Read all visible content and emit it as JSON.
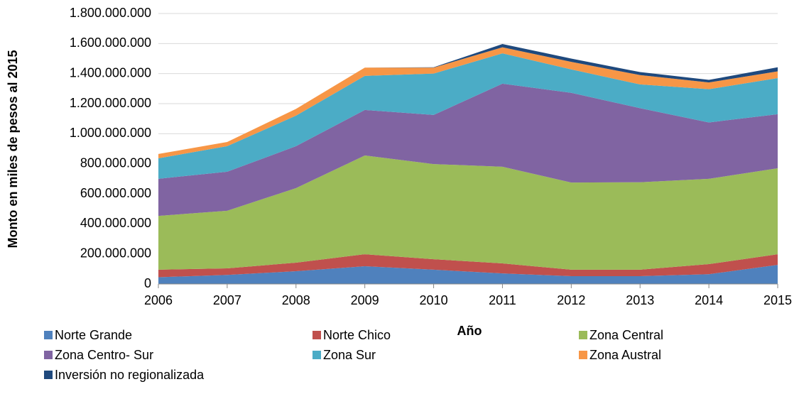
{
  "chart_data": {
    "type": "stacked_area",
    "xlabel": "Año",
    "ylabel": "Monto en miles de pesos al 2015",
    "categories": [
      "2006",
      "2007",
      "2008",
      "2009",
      "2010",
      "2011",
      "2012",
      "2013",
      "2014",
      "2015"
    ],
    "series": [
      {
        "name": "Norte Grande",
        "color": "#4f81bd",
        "values": [
          45000000,
          60000000,
          85000000,
          118000000,
          95000000,
          70000000,
          52000000,
          52000000,
          65000000,
          127000000
        ]
      },
      {
        "name": "Norte Chico",
        "color": "#c0504d",
        "values": [
          50000000,
          44000000,
          57000000,
          80000000,
          70000000,
          67000000,
          43000000,
          43000000,
          67000000,
          71000000
        ]
      },
      {
        "name": "Zona Central",
        "color": "#9bbb59",
        "values": [
          358000000,
          383000000,
          496000000,
          657000000,
          633000000,
          643000000,
          580000000,
          582000000,
          568000000,
          572000000
        ]
      },
      {
        "name": "Zona Centro- Sur",
        "color": "#8064a2",
        "values": [
          247000000,
          260000000,
          279000000,
          303000000,
          327000000,
          553000000,
          597000000,
          493000000,
          375000000,
          360000000
        ]
      },
      {
        "name": "Zona Sur",
        "color": "#4bacc6",
        "values": [
          136000000,
          170000000,
          203000000,
          227000000,
          275000000,
          202000000,
          156000000,
          158000000,
          221000000,
          240000000
        ]
      },
      {
        "name": "Zona Austral",
        "color": "#f79646",
        "values": [
          29000000,
          28000000,
          45000000,
          55000000,
          40000000,
          40000000,
          50000000,
          62000000,
          45000000,
          45000000
        ]
      },
      {
        "name": "Inversión no regionalizada",
        "color": "#1f497d",
        "values": [
          0,
          0,
          0,
          0,
          2000000,
          22000000,
          22000000,
          20000000,
          17000000,
          27000000
        ]
      }
    ],
    "ylim": [
      0,
      1800000000
    ],
    "yticks": [
      0,
      {
        "value": 200000000,
        "label": "200.000.000"
      },
      {
        "value": 400000000,
        "label": "400.000.000"
      },
      {
        "value": 600000000,
        "label": "600.000.000"
      },
      {
        "value": 800000000,
        "label": "800.000.000"
      },
      {
        "value": 1000000000,
        "label": "1.000.000.000"
      },
      {
        "value": 1200000000,
        "label": "1.200.000.000"
      },
      {
        "value": 1400000000,
        "label": "1.400.000.000"
      },
      {
        "value": 1600000000,
        "label": "1.600.000.000"
      },
      {
        "value": 1800000000,
        "label": "1.800.000.000"
      }
    ],
    "grid": true,
    "legend": "bottom"
  }
}
